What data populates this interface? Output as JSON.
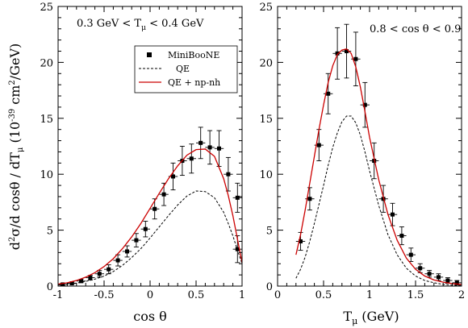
{
  "chart_data": [
    {
      "type": "line",
      "annotation": "0.3 GeV < T",
      "annotation_sub": "μ",
      "annotation_tail": " < 0.4 GeV",
      "xlabel": "cos θ",
      "ylabel": {
        "a": "d",
        "b": "2",
        "c": "σ/d cosθ / dT",
        "d": "μ",
        "e": " (10",
        "f": "-39",
        "g": " cm",
        "h": "2",
        "i": "/GeV)"
      },
      "xlim": [
        -1,
        1
      ],
      "ylim": [
        0,
        25
      ],
      "xticks": [
        -1,
        -0.5,
        0,
        0.5,
        1
      ],
      "xtick_labels": [
        "-1",
        "-0.5",
        "0",
        "0.5",
        "1"
      ],
      "yticks": [
        0,
        5,
        10,
        15,
        20,
        25
      ],
      "ytick_labels": [
        "0",
        "5",
        "10",
        "15",
        "20",
        "25"
      ],
      "legend": {
        "placement": "upper-right",
        "entries": [
          {
            "label": "MiniBooNE",
            "style": "marker",
            "color": "#000000"
          },
          {
            "label": "QE",
            "style": "dashed",
            "color": "#000000"
          },
          {
            "label": "QE + np-nh",
            "style": "solid",
            "color": "#cc0000"
          }
        ]
      },
      "series": [
        {
          "name": "MiniBooNE",
          "kind": "points",
          "x": [
            -0.95,
            -0.85,
            -0.75,
            -0.65,
            -0.55,
            -0.45,
            -0.35,
            -0.25,
            -0.15,
            -0.05,
            0.05,
            0.15,
            0.25,
            0.35,
            0.45,
            0.55,
            0.65,
            0.75,
            0.85,
            0.95
          ],
          "y": [
            0.15,
            0.25,
            0.45,
            0.75,
            1.1,
            1.5,
            2.3,
            3.1,
            4.1,
            5.1,
            6.9,
            8.2,
            9.8,
            11.2,
            11.4,
            12.8,
            12.4,
            12.3,
            10.0,
            7.9
          ],
          "err": [
            0.1,
            0.1,
            0.15,
            0.2,
            0.3,
            0.4,
            0.5,
            0.5,
            0.6,
            0.7,
            0.9,
            1.0,
            1.2,
            1.3,
            1.3,
            1.4,
            1.5,
            1.6,
            1.5,
            1.3
          ],
          "xerr": 0.05
        },
        {
          "name": "MiniBooNE-last",
          "kind": "points",
          "x": [
            0.95
          ],
          "y": [
            3.3
          ],
          "err": [
            1.2
          ],
          "xerr": 0.05
        },
        {
          "name": "QE",
          "kind": "dashed",
          "color": "#000000",
          "x": [
            -1,
            -0.9,
            -0.8,
            -0.7,
            -0.6,
            -0.5,
            -0.4,
            -0.3,
            -0.2,
            -0.1,
            0,
            0.1,
            0.2,
            0.3,
            0.4,
            0.5,
            0.6,
            0.7,
            0.8,
            0.85,
            0.9,
            0.95,
            1
          ],
          "y": [
            0.1,
            0.17,
            0.27,
            0.42,
            0.62,
            0.9,
            1.3,
            1.85,
            2.55,
            3.35,
            4.3,
            5.3,
            6.3,
            7.25,
            8.05,
            8.5,
            8.45,
            7.9,
            6.6,
            5.6,
            4.5,
            3.2,
            2.0
          ]
        },
        {
          "name": "QE + np-nh",
          "kind": "solid",
          "color": "#cc0000",
          "x": [
            -1,
            -0.9,
            -0.8,
            -0.7,
            -0.6,
            -0.5,
            -0.4,
            -0.3,
            -0.2,
            -0.1,
            0,
            0.1,
            0.2,
            0.3,
            0.4,
            0.5,
            0.6,
            0.7,
            0.8,
            0.85,
            0.9,
            0.95,
            1
          ],
          "y": [
            0.18,
            0.3,
            0.5,
            0.8,
            1.2,
            1.75,
            2.45,
            3.35,
            4.4,
            5.6,
            6.95,
            8.3,
            9.6,
            10.75,
            11.7,
            12.2,
            12.25,
            11.6,
            9.6,
            8.1,
            6.3,
            4.2,
            2.1
          ]
        }
      ]
    },
    {
      "type": "line",
      "annotation": "0.8 < cos θ < 0.9",
      "xlabel": "T",
      "xlabel_sub": "μ",
      "xlabel_tail": " (GeV)",
      "xlim": [
        0,
        2
      ],
      "ylim": [
        0,
        25
      ],
      "xticks": [
        0,
        0.5,
        1,
        1.5,
        2
      ],
      "xtick_labels": [
        "0",
        "0.5",
        "1",
        "1.5",
        "2"
      ],
      "yticks": [
        0,
        5,
        10,
        15,
        20,
        25
      ],
      "ytick_labels": [
        "0",
        "5",
        "10",
        "15",
        "20",
        "25"
      ],
      "series": [
        {
          "name": "MiniBooNE",
          "kind": "points",
          "x": [
            0.25,
            0.35,
            0.45,
            0.55,
            0.65,
            0.75,
            0.85,
            0.95,
            1.05,
            1.15,
            1.25,
            1.35,
            1.45,
            1.55,
            1.65,
            1.75,
            1.85,
            1.95
          ],
          "y": [
            4.0,
            7.8,
            12.6,
            17.2,
            20.8,
            21.0,
            20.3,
            16.2,
            11.2,
            7.8,
            6.4,
            4.5,
            2.8,
            1.6,
            1.1,
            0.8,
            0.5,
            0.3
          ],
          "err": [
            0.8,
            1.0,
            1.4,
            1.8,
            2.3,
            2.4,
            2.4,
            2.0,
            1.6,
            1.2,
            1.0,
            0.8,
            0.6,
            0.4,
            0.3,
            0.3,
            0.25,
            0.2
          ],
          "xerr": 0.05
        },
        {
          "name": "QE",
          "kind": "dashed",
          "color": "#000000",
          "x": [
            0.2,
            0.25,
            0.3,
            0.35,
            0.4,
            0.45,
            0.5,
            0.55,
            0.6,
            0.65,
            0.7,
            0.75,
            0.8,
            0.85,
            0.9,
            0.95,
            1.0,
            1.1,
            1.2,
            1.3,
            1.4,
            1.5,
            1.6,
            1.7,
            1.8,
            1.9,
            2.0
          ],
          "y": [
            0.7,
            1.5,
            2.6,
            4.0,
            5.6,
            7.3,
            9.0,
            10.8,
            12.4,
            13.7,
            14.7,
            15.2,
            15.2,
            14.6,
            13.5,
            12.0,
            10.3,
            7.2,
            4.6,
            2.8,
            1.6,
            0.9,
            0.5,
            0.3,
            0.15,
            0.08,
            0.05
          ]
        },
        {
          "name": "QE + np-nh",
          "kind": "solid",
          "color": "#cc0000",
          "x": [
            0.2,
            0.25,
            0.3,
            0.35,
            0.4,
            0.45,
            0.5,
            0.55,
            0.6,
            0.65,
            0.7,
            0.75,
            0.8,
            0.85,
            0.9,
            0.95,
            1.0,
            1.1,
            1.2,
            1.3,
            1.4,
            1.5,
            1.6,
            1.7,
            1.8,
            1.9,
            2.0
          ],
          "y": [
            2.8,
            4.6,
            6.8,
            9.2,
            11.6,
            14.0,
            16.2,
            18.2,
            19.7,
            20.7,
            21.1,
            21.2,
            20.8,
            19.6,
            17.8,
            15.6,
            13.3,
            9.5,
            6.4,
            4.1,
            2.5,
            1.5,
            0.9,
            0.55,
            0.35,
            0.22,
            0.15
          ]
        }
      ]
    }
  ]
}
